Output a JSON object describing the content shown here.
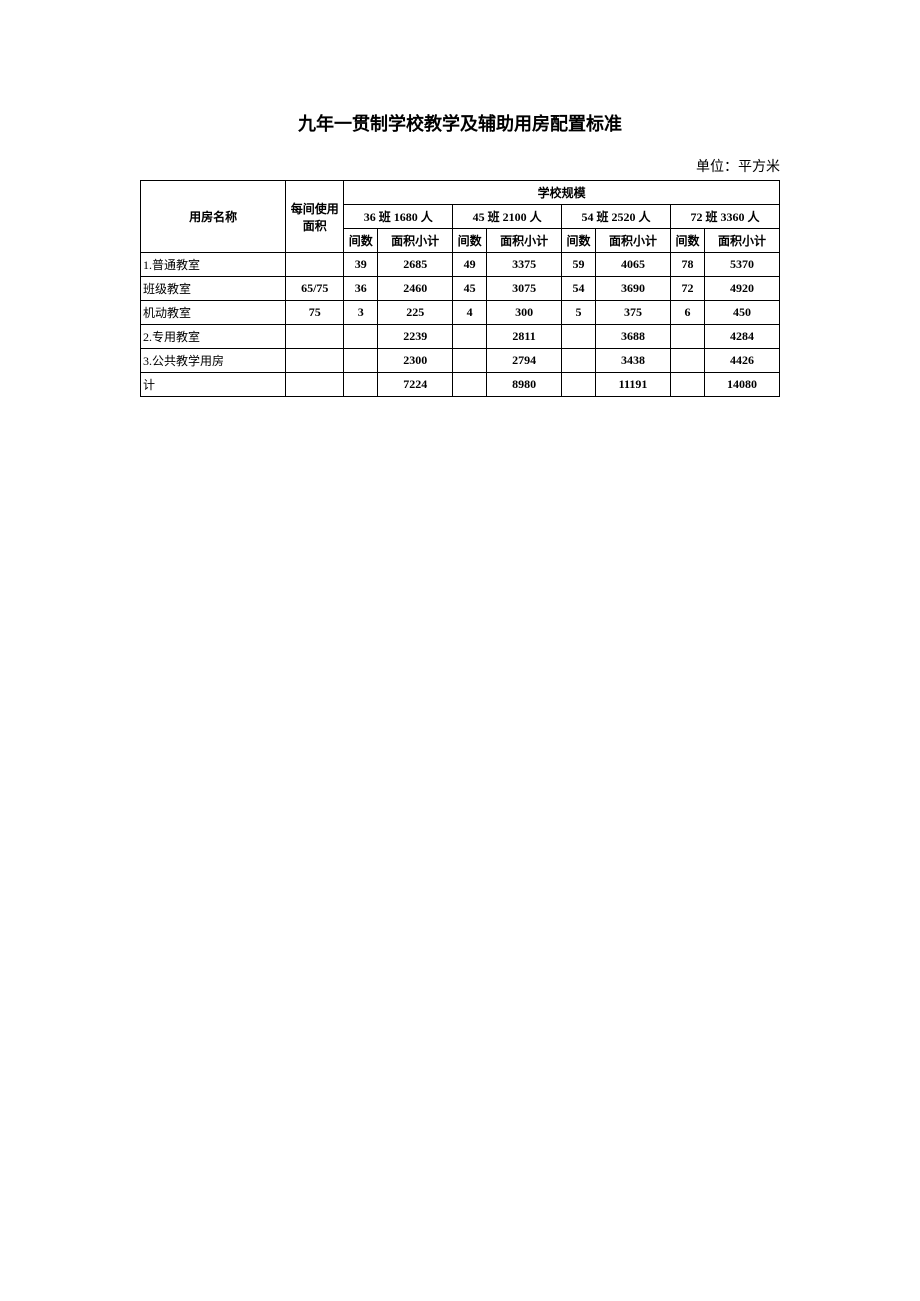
{
  "title": "九年一贯制学校教学及辅助用房配置标准",
  "unit_label": "单位：平方米",
  "headers": {
    "room_name": "用房名称",
    "per_room_area": "每间使用面积",
    "school_scale": "学校规模",
    "scale_36": "36 班 1680 人",
    "scale_45": "45 班 2100 人",
    "scale_54": "54 班 2520 人",
    "scale_72": "72 班 3360 人",
    "room_count": "间数",
    "area_subtotal": "面积小计"
  },
  "rows": [
    {
      "name": "1.普通教室",
      "per_area": "",
      "s36_count": "39",
      "s36_area": "2685",
      "s45_count": "49",
      "s45_area": "3375",
      "s54_count": "59",
      "s54_area": "4065",
      "s72_count": "78",
      "s72_area": "5370"
    },
    {
      "name": "班级教室",
      "per_area": "65/75",
      "s36_count": "36",
      "s36_area": "2460",
      "s45_count": "45",
      "s45_area": "3075",
      "s54_count": "54",
      "s54_area": "3690",
      "s72_count": "72",
      "s72_area": "4920"
    },
    {
      "name": "机动教室",
      "per_area": "75",
      "s36_count": "3",
      "s36_area": "225",
      "s45_count": "4",
      "s45_area": "300",
      "s54_count": "5",
      "s54_area": "375",
      "s72_count": "6",
      "s72_area": "450"
    },
    {
      "name": "2.专用教室",
      "per_area": "",
      "s36_count": "",
      "s36_area": "2239",
      "s45_count": "",
      "s45_area": "2811",
      "s54_count": "",
      "s54_area": "3688",
      "s72_count": "",
      "s72_area": "4284"
    },
    {
      "name": "3.公共教学用房",
      "per_area": "",
      "s36_count": "",
      "s36_area": "2300",
      "s45_count": "",
      "s45_area": "2794",
      "s54_count": "",
      "s54_area": "3438",
      "s72_count": "",
      "s72_area": "4426"
    },
    {
      "name": "计",
      "per_area": "",
      "s36_count": "",
      "s36_area": "7224",
      "s45_count": "",
      "s45_area": "8980",
      "s54_count": "",
      "s54_area": "11191",
      "s72_count": "",
      "s72_area": "14080"
    }
  ],
  "styling": {
    "background_color": "#ffffff",
    "border_color": "#000000",
    "text_color": "#000000",
    "title_fontsize": 18,
    "body_fontsize": 12,
    "unit_fontsize": 14
  }
}
